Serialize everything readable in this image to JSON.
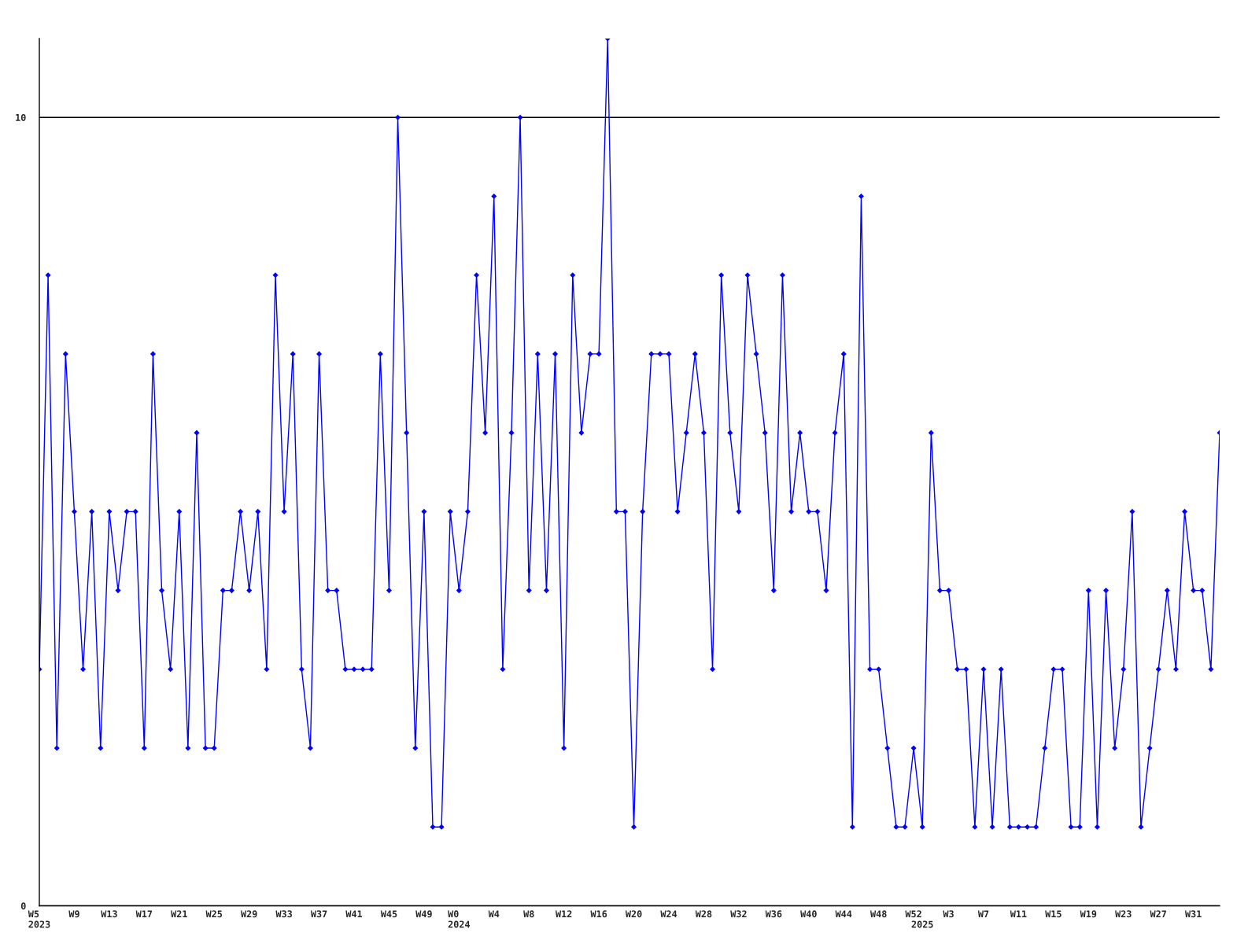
{
  "chart_data": {
    "type": "line",
    "categories": [
      "W5\n2023",
      null,
      null,
      null,
      "W9",
      null,
      null,
      null,
      "W13",
      null,
      null,
      null,
      "W17",
      null,
      null,
      null,
      "W21",
      null,
      null,
      null,
      "W25",
      null,
      null,
      null,
      "W29",
      null,
      null,
      null,
      "W33",
      null,
      null,
      null,
      "W37",
      null,
      null,
      null,
      "W41",
      null,
      null,
      null,
      "W45",
      null,
      null,
      null,
      "W49",
      null,
      null,
      null,
      "W0\n2024",
      null,
      null,
      null,
      "W4",
      null,
      null,
      null,
      "W8",
      null,
      null,
      null,
      "W12",
      null,
      null,
      null,
      "W16",
      null,
      null,
      null,
      "W20",
      null,
      null,
      null,
      "W24",
      null,
      null,
      null,
      "W28",
      null,
      null,
      null,
      "W32",
      null,
      null,
      null,
      "W36",
      null,
      null,
      null,
      "W40",
      null,
      null,
      null,
      "W44",
      null,
      null,
      null,
      "W48",
      null,
      null,
      null,
      "W52",
      "\n2025",
      null,
      null,
      "W3",
      null,
      null,
      null,
      "W7",
      null,
      null,
      null,
      "W11",
      null,
      null,
      null,
      "W15",
      null,
      null,
      null,
      "W19",
      null,
      null,
      null,
      "W23",
      null,
      null,
      null,
      "W27",
      null,
      null,
      null,
      "W31",
      null,
      null,
      null
    ],
    "series": [
      {
        "color": "#0000ff",
        "values": [
          3,
          8,
          2,
          7,
          5,
          3,
          5,
          2,
          5,
          4,
          5,
          5,
          2,
          7,
          4,
          3,
          5,
          2,
          6,
          2,
          2,
          4,
          4,
          5,
          4,
          5,
          3,
          8,
          5,
          7,
          3,
          2,
          7,
          4,
          4,
          3,
          3,
          3,
          3,
          7,
          4,
          10,
          6,
          2,
          5,
          1,
          1,
          5,
          4,
          5,
          8,
          6,
          9,
          3,
          6,
          10,
          4,
          7,
          4,
          7,
          2,
          8,
          6,
          7,
          7,
          11,
          5,
          5,
          1,
          5,
          7,
          7,
          7,
          5,
          6,
          7,
          6,
          3,
          8,
          6,
          5,
          8,
          7,
          6,
          4,
          8,
          5,
          6,
          5,
          5,
          4,
          6,
          7,
          1,
          9,
          3,
          3,
          2,
          1,
          1,
          2,
          1,
          6,
          4,
          4,
          3,
          3,
          1,
          3,
          1,
          3,
          1,
          1,
          1,
          1,
          2,
          3,
          3,
          1,
          1,
          4,
          1,
          4,
          2,
          3,
          5,
          1,
          2,
          3,
          4,
          3,
          5,
          4,
          4,
          3,
          6
        ]
      }
    ],
    "ylim": [
      0,
      11
    ],
    "yticks": [
      0,
      10
    ],
    "grid": "y",
    "marker": "diamond",
    "line_style": "solid"
  }
}
